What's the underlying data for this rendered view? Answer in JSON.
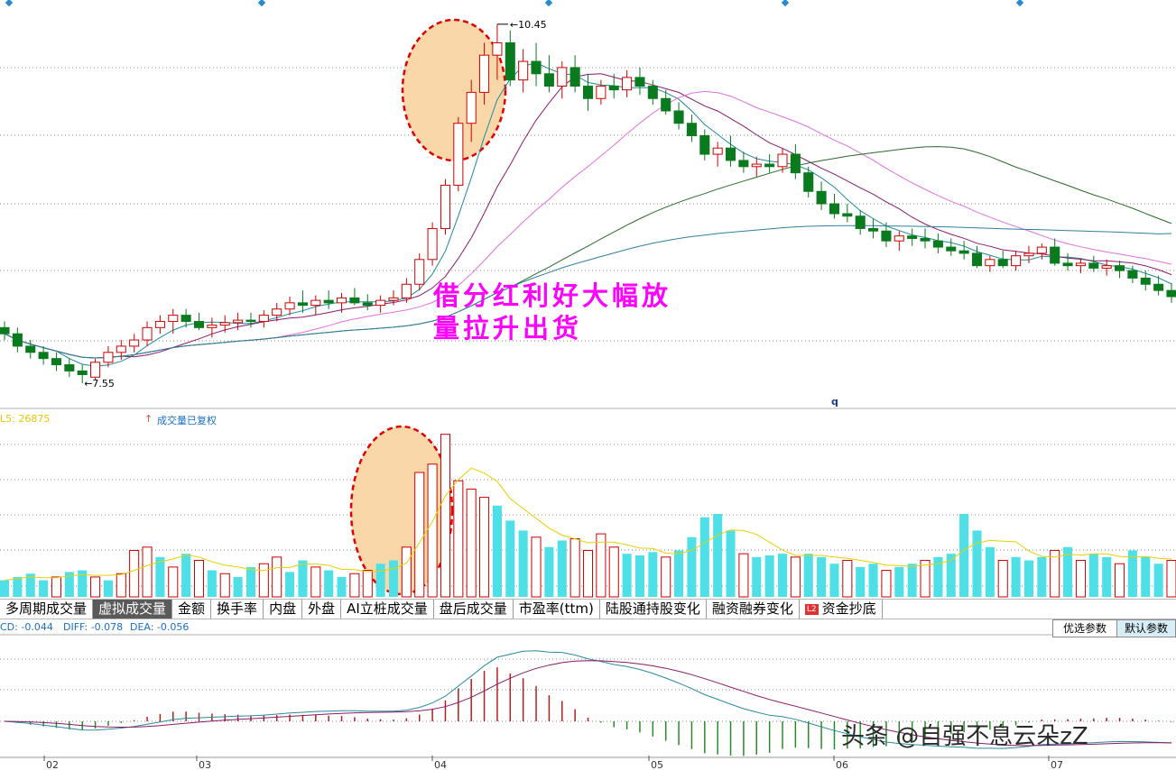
{
  "chart_data": {
    "type": "candlestick",
    "price_extremes": {
      "high": "10.45",
      "low": "7.55"
    },
    "date_ticks": [
      "02",
      "03",
      "04",
      "05",
      "06",
      "07"
    ],
    "ohlc": [
      [
        8.0,
        8.05,
        7.9,
        7.95
      ],
      [
        7.95,
        8.0,
        7.8,
        7.85
      ],
      [
        7.85,
        7.9,
        7.75,
        7.8
      ],
      [
        7.8,
        7.85,
        7.7,
        7.75
      ],
      [
        7.75,
        7.8,
        7.65,
        7.7
      ],
      [
        7.7,
        7.75,
        7.6,
        7.65
      ],
      [
        7.65,
        7.7,
        7.55,
        7.62
      ],
      [
        7.6,
        7.75,
        7.58,
        7.72
      ],
      [
        7.72,
        7.85,
        7.68,
        7.8
      ],
      [
        7.8,
        7.9,
        7.74,
        7.85
      ],
      [
        7.85,
        7.95,
        7.8,
        7.9
      ],
      [
        7.9,
        8.05,
        7.85,
        8.0
      ],
      [
        8.0,
        8.1,
        7.95,
        8.05
      ],
      [
        8.05,
        8.15,
        7.95,
        8.1
      ],
      [
        8.1,
        8.15,
        8.0,
        8.05
      ],
      [
        8.05,
        8.12,
        7.98,
        8.0
      ],
      [
        8.0,
        8.08,
        7.92,
        8.02
      ],
      [
        8.02,
        8.1,
        7.96,
        8.04
      ],
      [
        8.04,
        8.12,
        7.98,
        8.06
      ],
      [
        8.06,
        8.12,
        8.0,
        8.05
      ],
      [
        8.05,
        8.14,
        8.0,
        8.1
      ],
      [
        8.1,
        8.2,
        8.05,
        8.15
      ],
      [
        8.15,
        8.25,
        8.1,
        8.2
      ],
      [
        8.2,
        8.3,
        8.12,
        8.18
      ],
      [
        8.18,
        8.26,
        8.1,
        8.22
      ],
      [
        8.22,
        8.3,
        8.15,
        8.2
      ],
      [
        8.2,
        8.28,
        8.12,
        8.24
      ],
      [
        8.24,
        8.32,
        8.18,
        8.2
      ],
      [
        8.2,
        8.27,
        8.14,
        8.18
      ],
      [
        8.18,
        8.26,
        8.12,
        8.22
      ],
      [
        8.22,
        8.3,
        8.18,
        8.24
      ],
      [
        8.24,
        8.4,
        8.2,
        8.35
      ],
      [
        8.35,
        8.6,
        8.3,
        8.55
      ],
      [
        8.55,
        8.85,
        8.5,
        8.8
      ],
      [
        8.8,
        9.2,
        8.75,
        9.15
      ],
      [
        9.15,
        9.7,
        9.1,
        9.65
      ],
      [
        9.65,
        10.0,
        9.5,
        9.9
      ],
      [
        9.9,
        10.3,
        9.8,
        10.2
      ],
      [
        10.2,
        10.45,
        10.0,
        10.3
      ],
      [
        10.3,
        10.4,
        9.95,
        10.0
      ],
      [
        10.0,
        10.25,
        9.9,
        10.15
      ],
      [
        10.15,
        10.3,
        9.95,
        10.05
      ],
      [
        10.05,
        10.2,
        9.9,
        9.95
      ],
      [
        9.95,
        10.15,
        9.85,
        10.1
      ],
      [
        10.1,
        10.2,
        9.9,
        9.95
      ],
      [
        9.95,
        10.05,
        9.75,
        9.85
      ],
      [
        9.85,
        10.0,
        9.8,
        9.95
      ],
      [
        9.95,
        10.05,
        9.85,
        9.92
      ],
      [
        9.92,
        10.08,
        9.86,
        10.02
      ],
      [
        10.02,
        10.1,
        9.88,
        9.95
      ],
      [
        9.95,
        10.0,
        9.8,
        9.85
      ],
      [
        9.85,
        9.92,
        9.72,
        9.75
      ],
      [
        9.75,
        9.82,
        9.6,
        9.65
      ],
      [
        9.65,
        9.72,
        9.5,
        9.55
      ],
      [
        9.55,
        9.6,
        9.35,
        9.4
      ],
      [
        9.4,
        9.5,
        9.3,
        9.45
      ],
      [
        9.45,
        9.55,
        9.3,
        9.35
      ],
      [
        9.35,
        9.42,
        9.25,
        9.3
      ],
      [
        9.3,
        9.38,
        9.22,
        9.32
      ],
      [
        9.32,
        9.4,
        9.25,
        9.3
      ],
      [
        9.3,
        9.45,
        9.25,
        9.4
      ],
      [
        9.4,
        9.48,
        9.2,
        9.25
      ],
      [
        9.25,
        9.3,
        9.05,
        9.1
      ],
      [
        9.1,
        9.18,
        8.95,
        9.0
      ],
      [
        9.0,
        9.08,
        8.88,
        8.92
      ],
      [
        8.92,
        9.0,
        8.85,
        8.9
      ],
      [
        8.9,
        8.95,
        8.75,
        8.8
      ],
      [
        8.8,
        8.88,
        8.72,
        8.78
      ],
      [
        8.78,
        8.85,
        8.65,
        8.7
      ],
      [
        8.7,
        8.78,
        8.62,
        8.74
      ],
      [
        8.74,
        8.8,
        8.66,
        8.72
      ],
      [
        8.72,
        8.8,
        8.64,
        8.7
      ],
      [
        8.7,
        8.76,
        8.6,
        8.65
      ],
      [
        8.65,
        8.72,
        8.58,
        8.62
      ],
      [
        8.62,
        8.7,
        8.55,
        8.6
      ],
      [
        8.6,
        8.66,
        8.48,
        8.5
      ],
      [
        8.5,
        8.58,
        8.45,
        8.55
      ],
      [
        8.55,
        8.62,
        8.48,
        8.5
      ],
      [
        8.5,
        8.62,
        8.46,
        8.58
      ],
      [
        8.58,
        8.66,
        8.52,
        8.6
      ],
      [
        8.6,
        8.68,
        8.55,
        8.65
      ],
      [
        8.65,
        8.72,
        8.5,
        8.52
      ],
      [
        8.52,
        8.6,
        8.46,
        8.5
      ],
      [
        8.5,
        8.56,
        8.44,
        8.52
      ],
      [
        8.52,
        8.58,
        8.45,
        8.48
      ],
      [
        8.48,
        8.55,
        8.42,
        8.5
      ],
      [
        8.5,
        8.54,
        8.4,
        8.46
      ],
      [
        8.46,
        8.5,
        8.36,
        8.4
      ],
      [
        8.4,
        8.46,
        8.3,
        8.35
      ],
      [
        8.35,
        8.42,
        8.26,
        8.3
      ],
      [
        8.3,
        8.36,
        8.2,
        8.25
      ]
    ],
    "volume_label": "L5: 26875",
    "volume_note": "成交量已复权",
    "volume_ylim": [
      0,
      100
    ],
    "volume": [
      [
        10,
        1
      ],
      [
        12,
        1
      ],
      [
        14,
        1
      ],
      [
        10,
        1
      ],
      [
        12,
        0
      ],
      [
        15,
        1
      ],
      [
        16,
        1
      ],
      [
        12,
        0
      ],
      [
        10,
        1
      ],
      [
        14,
        0
      ],
      [
        28,
        0
      ],
      [
        30,
        0
      ],
      [
        24,
        1
      ],
      [
        18,
        0
      ],
      [
        26,
        1
      ],
      [
        22,
        0
      ],
      [
        16,
        1
      ],
      [
        14,
        0
      ],
      [
        12,
        1
      ],
      [
        18,
        1
      ],
      [
        20,
        0
      ],
      [
        24,
        0
      ],
      [
        15,
        1
      ],
      [
        22,
        1
      ],
      [
        18,
        0
      ],
      [
        16,
        1
      ],
      [
        12,
        1
      ],
      [
        14,
        0
      ],
      [
        16,
        0
      ],
      [
        20,
        1
      ],
      [
        22,
        1
      ],
      [
        30,
        0
      ],
      [
        75,
        0
      ],
      [
        80,
        0
      ],
      [
        98,
        0
      ],
      [
        70,
        0
      ],
      [
        65,
        0
      ],
      [
        60,
        0
      ],
      [
        55,
        1
      ],
      [
        46,
        1
      ],
      [
        40,
        1
      ],
      [
        36,
        0
      ],
      [
        30,
        1
      ],
      [
        34,
        1
      ],
      [
        35,
        0
      ],
      [
        28,
        0
      ],
      [
        38,
        0
      ],
      [
        30,
        0
      ],
      [
        26,
        1
      ],
      [
        25,
        1
      ],
      [
        27,
        1
      ],
      [
        24,
        0
      ],
      [
        28,
        1
      ],
      [
        36,
        1
      ],
      [
        48,
        1
      ],
      [
        50,
        1
      ],
      [
        40,
        1
      ],
      [
        26,
        0
      ],
      [
        24,
        1
      ],
      [
        25,
        1
      ],
      [
        26,
        1
      ],
      [
        24,
        0
      ],
      [
        26,
        1
      ],
      [
        24,
        1
      ],
      [
        20,
        1
      ],
      [
        22,
        0
      ],
      [
        18,
        1
      ],
      [
        20,
        1
      ],
      [
        16,
        0
      ],
      [
        18,
        1
      ],
      [
        20,
        1
      ],
      [
        22,
        0
      ],
      [
        24,
        1
      ],
      [
        26,
        1
      ],
      [
        50,
        1
      ],
      [
        40,
        1
      ],
      [
        30,
        1
      ],
      [
        22,
        0
      ],
      [
        24,
        1
      ],
      [
        22,
        1
      ],
      [
        24,
        1
      ],
      [
        28,
        0
      ],
      [
        30,
        1
      ],
      [
        22,
        0
      ],
      [
        26,
        1
      ],
      [
        24,
        1
      ],
      [
        20,
        0
      ],
      [
        28,
        1
      ],
      [
        24,
        1
      ],
      [
        20,
        1
      ],
      [
        22,
        0
      ]
    ],
    "macd": {
      "label": "CD: -0.044",
      "diff": "DIFF: -0.078",
      "dea": "DEA: -0.056"
    }
  },
  "tabs": [
    "多周期成交量",
    "虚拟成交量",
    "金额",
    "换手率",
    "内盘",
    "外盘",
    "AI立桩成交量",
    "盘后成交量",
    "市盈率(ttm)",
    "陆股通持股变化",
    "融资融券变化",
    "资金抄底"
  ],
  "tab_badge": "L2",
  "buttons": {
    "optimize": "优选参数",
    "default": "默认参数"
  },
  "annotation": {
    "line1": "借分红利好大幅放",
    "line2": "量拉升出货"
  },
  "marker_q": "q",
  "watermark": "头条 @自强不息云朵zZ",
  "colors": {
    "up": "#d00000",
    "down": "#0a7a1e",
    "vol_up": "#cc0000",
    "vol_down": "#4ee0e6",
    "annot": "#ff00ff",
    "circle_fill": "#fad7a8",
    "circle_stroke": "#e00000"
  }
}
